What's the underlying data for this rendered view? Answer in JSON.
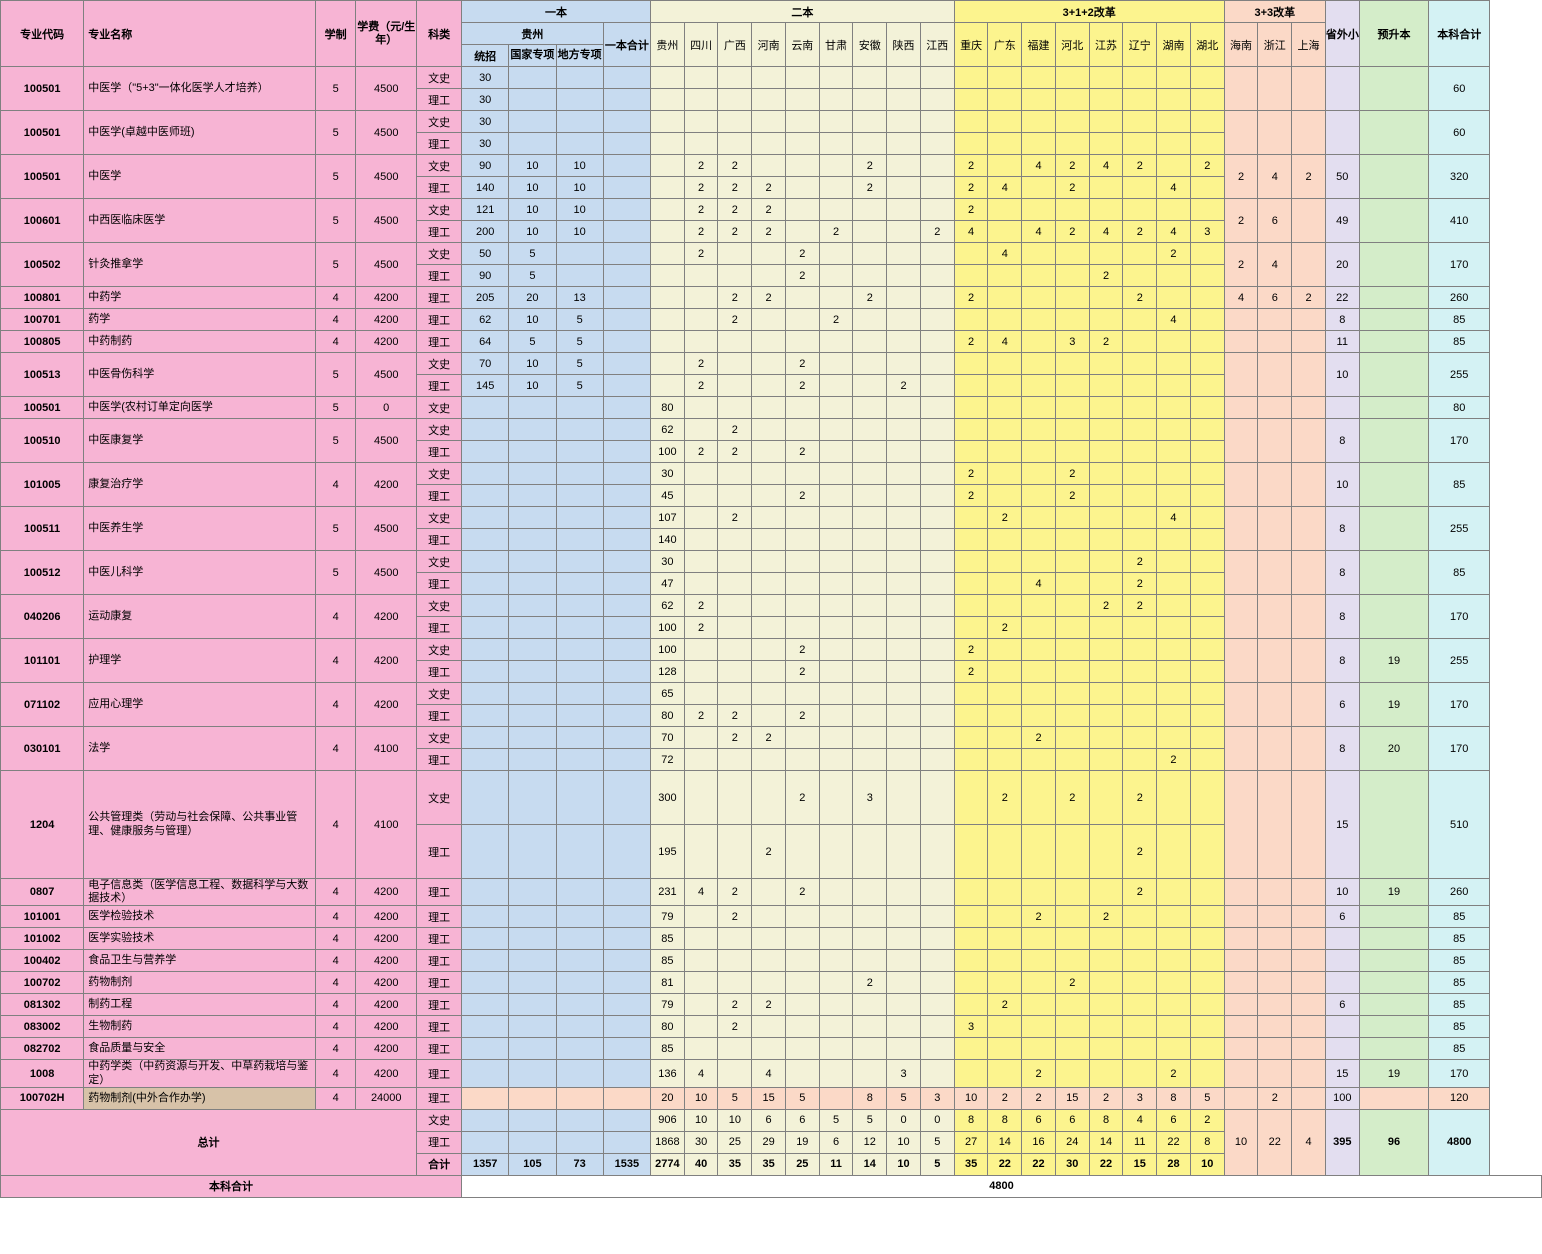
{
  "colors": {
    "pink": "#f7b4d4",
    "blue": "#c7dbf0",
    "cream": "#f3f2d8",
    "yellow": "#fcf48e",
    "peach": "#fbd9c7",
    "lavender": "#e3def0",
    "green": "#d4edc9",
    "cyan": "#d4f2f4",
    "total_row": "#d7c2a8",
    "border": "#808080",
    "text": "#000000"
  },
  "header": {
    "h_code": "专业代码",
    "h_name": "专业名称",
    "h_years": "学制",
    "h_fee": "学费（元/生年）",
    "h_type": "科类",
    "grp_1": "一本",
    "grp_gz": "贵州",
    "h_tongzhao": "统招",
    "h_guojia": "国家专项",
    "h_difang": "地方专项",
    "h_1total": "一本合计",
    "grp_2": "二本",
    "prov2": [
      "贵州",
      "四川",
      "广西",
      "河南",
      "云南",
      "甘肃",
      "安徽",
      "陕西",
      "江西"
    ],
    "grp_312": "3+1+2改革",
    "prov312": [
      "重庆",
      "广东",
      "福建",
      "河北",
      "江苏",
      "辽宁",
      "湖南",
      "湖北"
    ],
    "grp_33": "3+3改革",
    "prov33": [
      "海南",
      "浙江",
      "上海"
    ],
    "h_outside": "省外小计",
    "h_presheng": "预升本",
    "h_bsum": "本科合计"
  },
  "types": {
    "ws": "文史",
    "lg": "理工",
    "hj": "合计"
  },
  "rows": [
    {
      "code": "100501",
      "name": "中医学（\"5+3\"一体化医学人才培养）",
      "years": 5,
      "fee": 4500,
      "sub": [
        {
          "t": "ws",
          "tz": 30
        },
        {
          "t": "lg",
          "tz": 30
        }
      ],
      "bsum": 60
    },
    {
      "code": "100501",
      "name": "中医学(卓越中医师班)",
      "years": 5,
      "fee": 4500,
      "sub": [
        {
          "t": "ws",
          "tz": 30
        },
        {
          "t": "lg",
          "tz": 30
        }
      ],
      "bsum": 60
    },
    {
      "code": "100501",
      "name": "中医学",
      "years": 5,
      "fee": 4500,
      "sub": [
        {
          "t": "ws",
          "tz": 90,
          "gj": 10,
          "df": 10,
          "p2": [
            "",
            2,
            2,
            "",
            "",
            "",
            2,
            "",
            ""
          ],
          "p312": [
            2,
            "",
            4,
            2,
            4,
            2,
            "",
            2
          ]
        },
        {
          "t": "lg",
          "tz": 140,
          "gj": 10,
          "df": 10,
          "p2": [
            "",
            2,
            2,
            2,
            "",
            "",
            2,
            "",
            ""
          ],
          "p312": [
            2,
            4,
            "",
            2,
            "",
            "",
            4,
            ""
          ]
        }
      ],
      "p33": [
        2,
        4,
        2
      ],
      "out": 50,
      "bsum": 320
    },
    {
      "code": "100601",
      "name": "中西医临床医学",
      "years": 5,
      "fee": 4500,
      "sub": [
        {
          "t": "ws",
          "tz": 121,
          "gj": 10,
          "df": 10,
          "p2": [
            "",
            2,
            2,
            2,
            "",
            "",
            "",
            "",
            ""
          ],
          "p312": [
            2,
            "",
            "",
            "",
            "",
            "",
            "",
            ""
          ]
        },
        {
          "t": "lg",
          "tz": 200,
          "gj": 10,
          "df": 10,
          "p2": [
            "",
            2,
            2,
            2,
            "",
            2,
            "",
            "",
            2
          ],
          "p312": [
            4,
            "",
            4,
            2,
            4,
            2,
            4,
            3
          ]
        }
      ],
      "p33": [
        2,
        6,
        ""
      ],
      "out": 49,
      "bsum": 410
    },
    {
      "code": "100502",
      "name": "针灸推拿学",
      "years": 5,
      "fee": 4500,
      "sub": [
        {
          "t": "ws",
          "tz": 50,
          "gj": 5,
          "p2": [
            "",
            2,
            "",
            "",
            2,
            "",
            "",
            "",
            ""
          ],
          "p312": [
            "",
            4,
            "",
            "",
            "",
            "",
            2,
            ""
          ]
        },
        {
          "t": "lg",
          "tz": 90,
          "gj": 5,
          "p2": [
            "",
            "",
            "",
            "",
            2,
            "",
            "",
            "",
            ""
          ],
          "p312": [
            "",
            "",
            "",
            "",
            2,
            "",
            "",
            ""
          ]
        }
      ],
      "p33": [
        2,
        4,
        ""
      ],
      "out": 20,
      "bsum": 170
    },
    {
      "code": "100801",
      "name": "中药学",
      "years": 4,
      "fee": 4200,
      "sub": [
        {
          "t": "lg",
          "tz": 205,
          "gj": 20,
          "df": 13,
          "p2": [
            "",
            "",
            2,
            2,
            "",
            "",
            2,
            "",
            ""
          ],
          "p312": [
            2,
            "",
            "",
            "",
            "",
            2,
            "",
            ""
          ]
        }
      ],
      "p33": [
        4,
        6,
        2
      ],
      "out": 22,
      "bsum": 260
    },
    {
      "code": "100701",
      "name": "药学",
      "years": 4,
      "fee": 4200,
      "sub": [
        {
          "t": "lg",
          "tz": 62,
          "gj": 10,
          "df": 5,
          "p2": [
            "",
            "",
            2,
            "",
            "",
            2,
            "",
            "",
            ""
          ],
          "p312": [
            "",
            "",
            "",
            "",
            "",
            "",
            4,
            ""
          ]
        }
      ],
      "out": 8,
      "bsum": 85
    },
    {
      "code": "100805",
      "name": "中药制药",
      "years": 4,
      "fee": 4200,
      "sub": [
        {
          "t": "lg",
          "tz": 64,
          "gj": 5,
          "df": 5,
          "p312": [
            2,
            4,
            "",
            3,
            2,
            "",
            "",
            ""
          ]
        }
      ],
      "out": 11,
      "bsum": 85
    },
    {
      "code": "100513",
      "name": "中医骨伤科学",
      "years": 5,
      "fee": 4500,
      "sub": [
        {
          "t": "ws",
          "tz": 70,
          "gj": 10,
          "df": 5,
          "p2": [
            "",
            2,
            "",
            "",
            2,
            "",
            "",
            "",
            ""
          ]
        },
        {
          "t": "lg",
          "tz": 145,
          "gj": 10,
          "df": 5,
          "p2": [
            "",
            2,
            "",
            "",
            2,
            "",
            "",
            2,
            ""
          ]
        }
      ],
      "out": 10,
      "bsum": 255
    },
    {
      "code": "100501",
      "name": "中医学(农村订单定向医学",
      "years": 5,
      "fee": 0,
      "sub": [
        {
          "t": "ws",
          "p2": [
            80
          ]
        }
      ],
      "bsum": 80
    },
    {
      "code": "100510",
      "name": "中医康复学",
      "years": 5,
      "fee": 4500,
      "sub": [
        {
          "t": "ws",
          "p2": [
            62,
            "",
            2,
            "",
            "",
            "",
            "",
            "",
            ""
          ]
        },
        {
          "t": "lg",
          "p2": [
            100,
            2,
            2,
            "",
            2,
            "",
            "",
            "",
            ""
          ]
        }
      ],
      "out": 8,
      "bsum": 170
    },
    {
      "code": "101005",
      "name": "康复治疗学",
      "years": 4,
      "fee": 4200,
      "sub": [
        {
          "t": "ws",
          "p2": [
            30
          ],
          "p312": [
            2,
            "",
            "",
            2,
            "",
            "",
            "",
            ""
          ]
        },
        {
          "t": "lg",
          "p2": [
            45,
            "",
            "",
            "",
            2,
            "",
            "",
            "",
            ""
          ],
          "p312": [
            2,
            "",
            "",
            2,
            "",
            "",
            "",
            ""
          ]
        }
      ],
      "out": 10,
      "bsum": 85
    },
    {
      "code": "100511",
      "name": "中医养生学",
      "years": 5,
      "fee": 4500,
      "sub": [
        {
          "t": "ws",
          "p2": [
            107,
            "",
            2,
            "",
            "",
            "",
            "",
            "",
            ""
          ],
          "p312": [
            "",
            2,
            "",
            "",
            "",
            "",
            4,
            ""
          ]
        },
        {
          "t": "lg",
          "p2": [
            140
          ]
        }
      ],
      "out": 8,
      "bsum": 255
    },
    {
      "code": "100512",
      "name": "中医儿科学",
      "years": 5,
      "fee": 4500,
      "sub": [
        {
          "t": "ws",
          "p2": [
            30
          ],
          "p312": [
            "",
            "",
            "",
            "",
            "",
            2,
            "",
            ""
          ]
        },
        {
          "t": "lg",
          "p2": [
            47
          ],
          "p312": [
            "",
            "",
            4,
            "",
            "",
            2,
            "",
            ""
          ]
        }
      ],
      "out": 8,
      "bsum": 85
    },
    {
      "code": "040206",
      "name": "运动康复",
      "years": 4,
      "fee": 4200,
      "sub": [
        {
          "t": "ws",
          "p2": [
            62,
            2,
            "",
            "",
            "",
            "",
            "",
            "",
            ""
          ],
          "p312": [
            "",
            "",
            "",
            "",
            2,
            2,
            "",
            ""
          ]
        },
        {
          "t": "lg",
          "p2": [
            100,
            2,
            "",
            "",
            "",
            "",
            "",
            "",
            ""
          ],
          "p312": [
            "",
            2,
            "",
            "",
            "",
            "",
            "",
            ""
          ]
        }
      ],
      "out": 8,
      "bsum": 170
    },
    {
      "code": "101101",
      "name": "护理学",
      "years": 4,
      "fee": 4200,
      "sub": [
        {
          "t": "ws",
          "p2": [
            100,
            "",
            "",
            "",
            2,
            "",
            "",
            "",
            ""
          ],
          "p312": [
            2,
            "",
            "",
            "",
            "",
            "",
            "",
            ""
          ]
        },
        {
          "t": "lg",
          "p2": [
            128,
            "",
            "",
            "",
            2,
            "",
            "",
            "",
            ""
          ],
          "p312": [
            2,
            "",
            "",
            "",
            "",
            "",
            "",
            ""
          ]
        }
      ],
      "out": 8,
      "pre": 19,
      "bsum": 255
    },
    {
      "code": "071102",
      "name": "应用心理学",
      "years": 4,
      "fee": 4200,
      "sub": [
        {
          "t": "ws",
          "p2": [
            65
          ]
        },
        {
          "t": "lg",
          "p2": [
            80,
            2,
            2,
            "",
            2,
            "",
            "",
            "",
            ""
          ]
        }
      ],
      "out": 6,
      "pre": 19,
      "bsum": 170
    },
    {
      "code": "030101",
      "name": "法学",
      "years": 4,
      "fee": 4100,
      "sub": [
        {
          "t": "ws",
          "p2": [
            70,
            "",
            2,
            2,
            "",
            "",
            "",
            "",
            ""
          ],
          "p312": [
            "",
            "",
            2,
            "",
            "",
            "",
            "",
            ""
          ]
        },
        {
          "t": "lg",
          "p2": [
            72
          ],
          "p312": [
            "",
            "",
            "",
            "",
            "",
            "",
            2,
            ""
          ]
        }
      ],
      "out": 8,
      "pre": 20,
      "bsum": 170
    },
    {
      "code": "1204",
      "name": "公共管理类（劳动与社会保障、公共事业管理、健康服务与管理）",
      "years": 4,
      "fee": 4100,
      "sub": [
        {
          "t": "ws",
          "tall": true,
          "p2": [
            300,
            "",
            "",
            "",
            2,
            "",
            3,
            "",
            ""
          ],
          "p312": [
            "",
            2,
            "",
            2,
            "",
            2,
            "",
            ""
          ]
        },
        {
          "t": "lg",
          "tall": true,
          "p2": [
            195,
            "",
            "",
            2,
            "",
            "",
            "",
            "",
            ""
          ],
          "p312": [
            "",
            "",
            "",
            "",
            "",
            2,
            "",
            ""
          ]
        }
      ],
      "out": 15,
      "bsum": 510
    },
    {
      "code": "0807",
      "name": "电子信息类（医学信息工程、数据科学与大数据技术）",
      "years": 4,
      "fee": 4200,
      "sub": [
        {
          "t": "lg",
          "p2": [
            231,
            4,
            2,
            "",
            2,
            "",
            "",
            "",
            ""
          ],
          "p312": [
            "",
            "",
            "",
            "",
            "",
            2,
            "",
            ""
          ]
        }
      ],
      "out": 10,
      "pre": 19,
      "bsum": 260
    },
    {
      "code": "101001",
      "name": "医学检验技术",
      "years": 4,
      "fee": 4200,
      "sub": [
        {
          "t": "lg",
          "p2": [
            79,
            "",
            2,
            "",
            "",
            "",
            "",
            "",
            ""
          ],
          "p312": [
            "",
            "",
            2,
            "",
            2,
            "",
            "",
            ""
          ]
        }
      ],
      "out": 6,
      "bsum": 85
    },
    {
      "code": "101002",
      "name": "医学实验技术",
      "years": 4,
      "fee": 4200,
      "sub": [
        {
          "t": "lg",
          "p2": [
            85
          ]
        }
      ],
      "bsum": 85
    },
    {
      "code": "100402",
      "name": "食品卫生与营养学",
      "years": 4,
      "fee": 4200,
      "sub": [
        {
          "t": "lg",
          "p2": [
            85
          ]
        }
      ],
      "bsum": 85
    },
    {
      "code": "100702",
      "name": "药物制剂",
      "years": 4,
      "fee": 4200,
      "sub": [
        {
          "t": "lg",
          "p2": [
            81,
            "",
            "",
            "",
            "",
            "",
            2,
            "",
            ""
          ],
          "p312": [
            "",
            "",
            "",
            2,
            "",
            "",
            "",
            ""
          ]
        }
      ],
      "bsum": 85
    },
    {
      "code": "081302",
      "name": "制药工程",
      "years": 4,
      "fee": 4200,
      "sub": [
        {
          "t": "lg",
          "p2": [
            79,
            "",
            2,
            2,
            "",
            "",
            "",
            "",
            ""
          ],
          "p312": [
            "",
            2,
            "",
            "",
            "",
            "",
            "",
            ""
          ]
        }
      ],
      "out": 6,
      "bsum": 85
    },
    {
      "code": "083002",
      "name": "生物制药",
      "years": 4,
      "fee": 4200,
      "sub": [
        {
          "t": "lg",
          "p2": [
            80,
            "",
            2,
            "",
            "",
            "",
            "",
            "",
            ""
          ],
          "p312": [
            3,
            "",
            "",
            "",
            "",
            "",
            "",
            ""
          ]
        }
      ],
      "bsum": 85
    },
    {
      "code": "082702",
      "name": "食品质量与安全",
      "years": 4,
      "fee": 4200,
      "sub": [
        {
          "t": "lg",
          "p2": [
            85
          ]
        }
      ],
      "bsum": 85
    },
    {
      "code": "1008",
      "name": "中药学类（中药资源与开发、中草药栽培与鉴定）",
      "years": 4,
      "fee": 4200,
      "sub": [
        {
          "t": "lg",
          "p2": [
            136,
            4,
            "",
            4,
            "",
            "",
            "",
            3,
            ""
          ],
          "p312": [
            "",
            "",
            2,
            "",
            "",
            "",
            2,
            ""
          ]
        }
      ],
      "out": 15,
      "pre": 19,
      "bsum": 170
    },
    {
      "code": "100702H",
      "name": "药物制剂(中外合作办学)",
      "years": 4,
      "fee": 24000,
      "hl": true,
      "sub": [
        {
          "t": "lg",
          "p2": [
            20,
            10,
            5,
            15,
            5,
            "",
            8,
            5,
            3
          ],
          "p312": [
            10,
            2,
            2,
            15,
            2,
            3,
            8,
            5
          ]
        }
      ],
      "p33": [
        "",
        2,
        ""
      ],
      "out": 100,
      "bsum": 120
    }
  ],
  "totals": {
    "label": "总计",
    "ws": {
      "p2": [
        906,
        10,
        10,
        6,
        6,
        5,
        5,
        0,
        0
      ],
      "p312": [
        8,
        8,
        6,
        6,
        8,
        4,
        6,
        2
      ]
    },
    "lg": {
      "p2": [
        1868,
        30,
        25,
        29,
        19,
        6,
        12,
        10,
        5
      ],
      "p312": [
        27,
        14,
        16,
        24,
        14,
        11,
        22,
        8
      ]
    },
    "hj": {
      "tz": 1357,
      "gj": 105,
      "df": 73,
      "t1": 1535,
      "p2": [
        2774,
        40,
        35,
        35,
        25,
        11,
        14,
        10,
        5
      ],
      "p312": [
        35,
        22,
        22,
        30,
        22,
        15,
        28,
        10
      ]
    },
    "p33": [
      10,
      22,
      4
    ],
    "out": 395,
    "pre": 96,
    "bsum": 4800
  },
  "footer": {
    "label": "本科合计",
    "value": 4800
  }
}
